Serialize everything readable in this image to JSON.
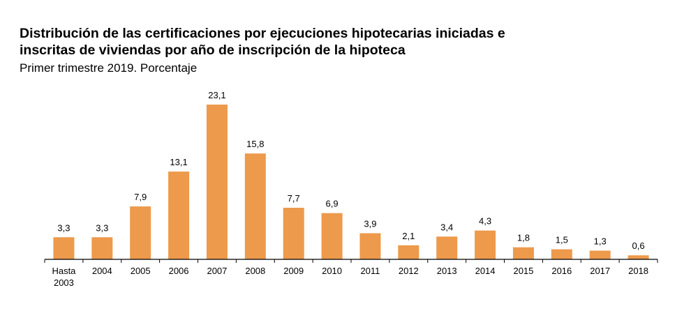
{
  "chart_data": {
    "type": "bar",
    "title_lines": [
      "Distribución de las certificaciones por ejecuciones hipotecarias iniciadas e",
      "inscritas de viviendas por año de inscripción de la hipoteca"
    ],
    "subtitle": "Primer trimestre 2019. Porcentaje",
    "categories": [
      [
        "Hasta",
        "2003"
      ],
      [
        "2004"
      ],
      [
        "2005"
      ],
      [
        "2006"
      ],
      [
        "2007"
      ],
      [
        "2008"
      ],
      [
        "2009"
      ],
      [
        "2010"
      ],
      [
        "2011"
      ],
      [
        "2012"
      ],
      [
        "2013"
      ],
      [
        "2014"
      ],
      [
        "2015"
      ],
      [
        "2016"
      ],
      [
        "2017"
      ],
      [
        "2018"
      ]
    ],
    "values": [
      3.3,
      3.3,
      7.9,
      13.1,
      23.1,
      15.8,
      7.7,
      6.9,
      3.9,
      2.1,
      3.4,
      4.3,
      1.8,
      1.5,
      1.3,
      0.6
    ],
    "value_labels": [
      "3,3",
      "3,3",
      "7,9",
      "13,1",
      "23,1",
      "15,8",
      "7,7",
      "6,9",
      "3,9",
      "2,1",
      "3,4",
      "4,3",
      "1,8",
      "1,5",
      "1,3",
      "0,6"
    ],
    "bar_color": "#ED9A4C",
    "ylim": [
      0,
      23.1
    ],
    "grid": false,
    "legend": "none"
  }
}
